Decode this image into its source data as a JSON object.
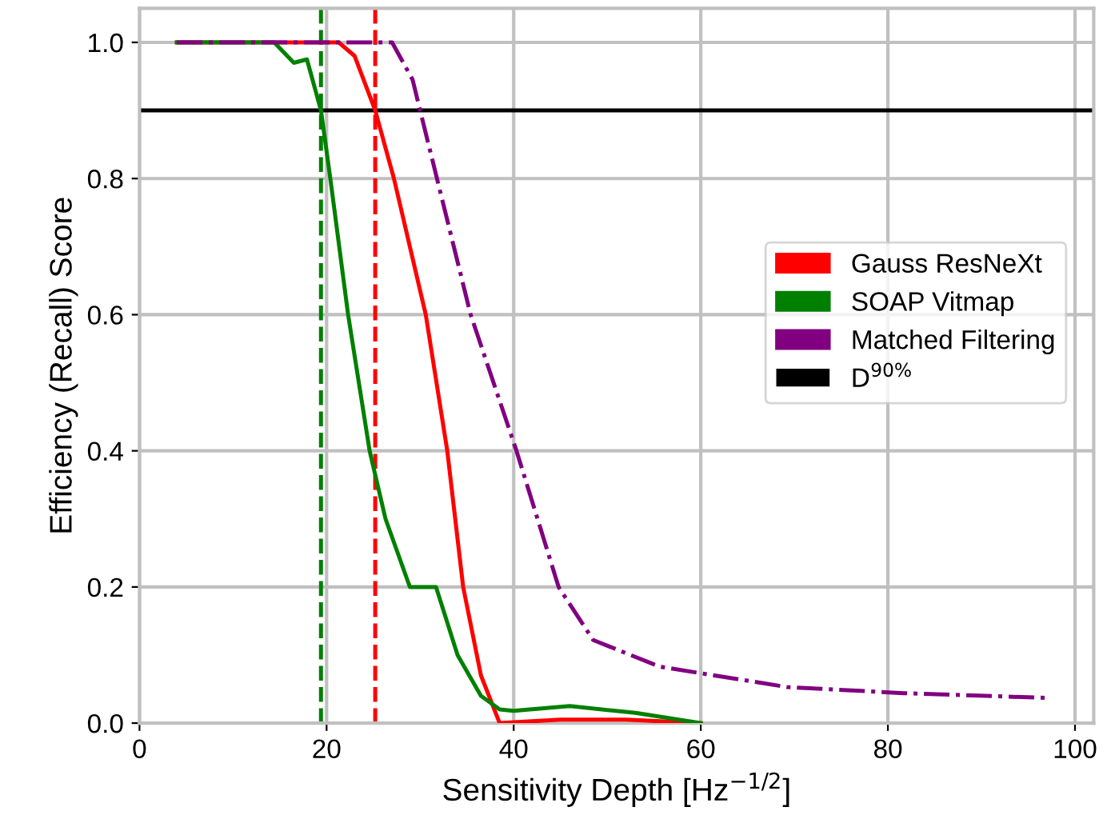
{
  "chart_data": {
    "type": "line",
    "xlabel": "Sensitivity Depth [Hz$^{−1/2}$]",
    "ylabel": "Efficiency (Recall) Score",
    "xlim": [
      0,
      102
    ],
    "ylim": [
      0,
      1.05
    ],
    "xticks": [
      0,
      20,
      40,
      60,
      80,
      100
    ],
    "yticks": [
      {
        "value": 0,
        "label": "0.0"
      },
      {
        "value": 0.2,
        "label": "0.2"
      },
      {
        "value": 0.4,
        "label": "0.4"
      },
      {
        "value": 0.6,
        "label": "0.6"
      },
      {
        "value": 0.8,
        "label": "0.8"
      },
      {
        "value": 1.0,
        "label": "1.0"
      }
    ],
    "grid": true,
    "legend": "right",
    "series": [
      {
        "name": "Gauss ResNeXt",
        "color": "#ff0000",
        "line_style": "solid",
        "x": [
          4,
          21.3,
          23,
          25.2,
          27.2,
          30.6,
          32.9,
          34.6,
          36.5,
          38.5,
          45,
          52,
          60
        ],
        "values": [
          1.0,
          1.0,
          0.98,
          0.9,
          0.8,
          0.6,
          0.4,
          0.2,
          0.07,
          0.0,
          0.005,
          0.005,
          0.0
        ]
      },
      {
        "name": "SOAP Vitmap",
        "color": "#008000",
        "line_style": "solid",
        "x": [
          4,
          14.4,
          16.5,
          17.9,
          19.4,
          20.4,
          22.3,
          24.6,
          26.3,
          28.9,
          31.7,
          34,
          36.5,
          38.5,
          40,
          46,
          53,
          60
        ],
        "values": [
          1.0,
          1.0,
          0.97,
          0.975,
          0.9,
          0.8,
          0.6,
          0.4,
          0.3,
          0.2,
          0.2,
          0.1,
          0.04,
          0.02,
          0.018,
          0.025,
          0.015,
          0.0
        ]
      },
      {
        "name": "Matched Filtering",
        "color": "#800080",
        "line_style": "dashdot",
        "x": [
          4,
          27,
          29.2,
          30,
          35.4,
          40.3,
          44.8,
          48.5,
          55.6,
          69.2,
          81.7,
          97
        ],
        "values": [
          1.0,
          1.0,
          0.945,
          0.9,
          0.6,
          0.4,
          0.2,
          0.122,
          0.083,
          0.053,
          0.044,
          0.037
        ]
      }
    ],
    "ref_lines": [
      {
        "axis": "y",
        "value": 0.9,
        "label": "D$^{90%}$",
        "color": "#000000",
        "line_style": "solid"
      },
      {
        "axis": "x",
        "value": 25.2,
        "color": "#ff0000",
        "line_style": "dashed"
      },
      {
        "axis": "x",
        "value": 19.4,
        "color": "#008000",
        "line_style": "dashed"
      }
    ]
  }
}
